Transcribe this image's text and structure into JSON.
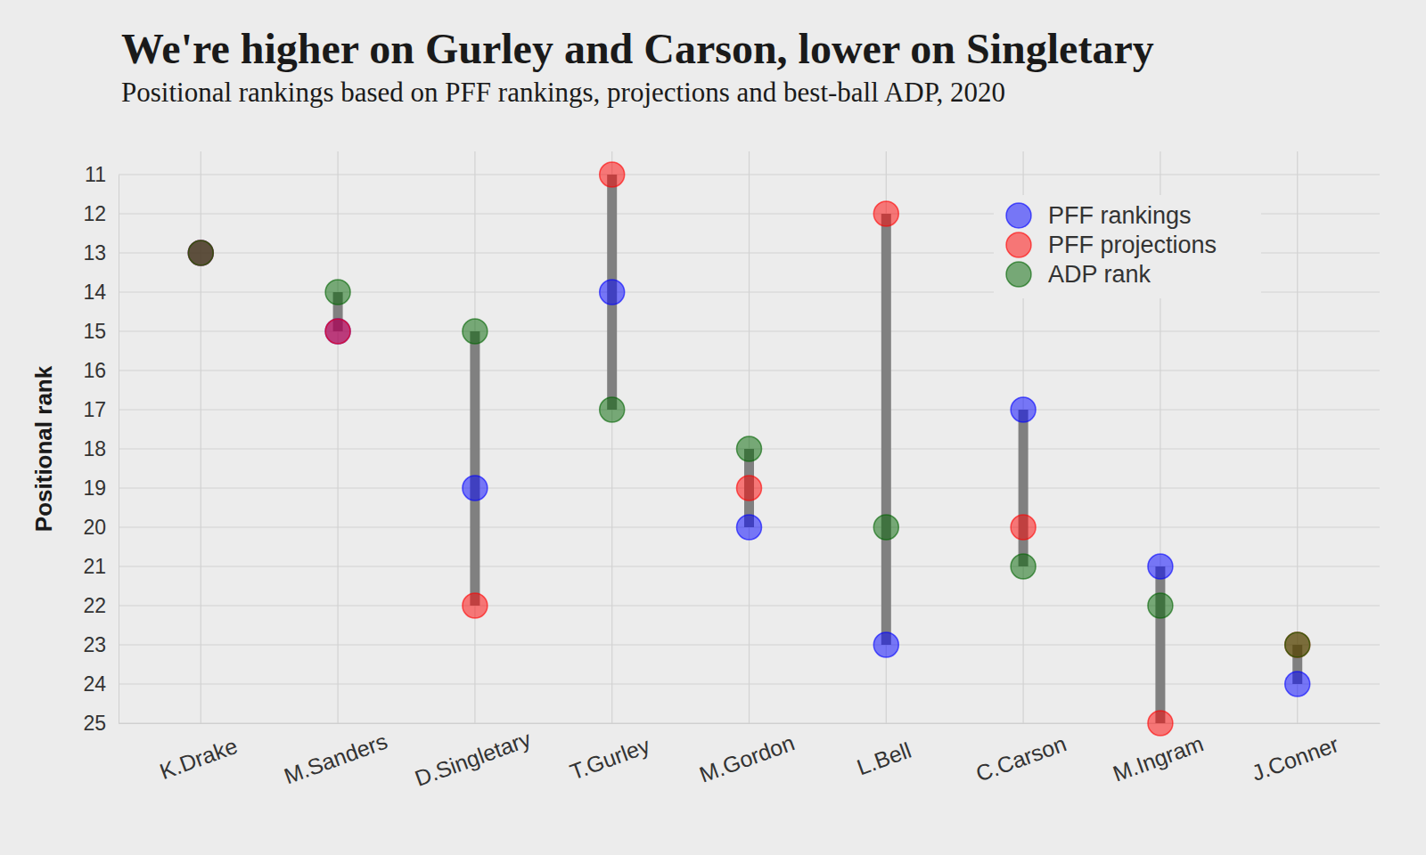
{
  "chart_data": {
    "type": "dot",
    "title": "We're higher on Gurley and Carson, lower on Singletary",
    "subtitle": "Positional rankings based on PFF rankings, projections and best-ball ADP, 2020",
    "ylabel": "Positional rank",
    "categories": [
      "K.Drake",
      "M.Sanders",
      "D.Singletary",
      "T.Gurley",
      "M.Gordon",
      "L.Bell",
      "C.Carson",
      "M.Ingram",
      "J.Conner"
    ],
    "series": [
      {
        "name": "PFF rankings",
        "color": "#0000ff",
        "values": [
          13,
          15,
          19,
          14,
          20,
          23,
          17,
          21,
          24
        ]
      },
      {
        "name": "PFF projections",
        "color": "#ff0000",
        "values": [
          13,
          15,
          22,
          11,
          19,
          12,
          20,
          25,
          23
        ]
      },
      {
        "name": "ADP rank",
        "color": "#006400",
        "values": [
          13,
          14,
          15,
          17,
          18,
          20,
          21,
          22,
          23
        ]
      }
    ],
    "ylim": [
      25,
      11
    ],
    "yticks": [
      11,
      12,
      13,
      14,
      15,
      16,
      17,
      18,
      19,
      20,
      21,
      22,
      23,
      24,
      25
    ],
    "grid": true,
    "legend": "upper right"
  }
}
